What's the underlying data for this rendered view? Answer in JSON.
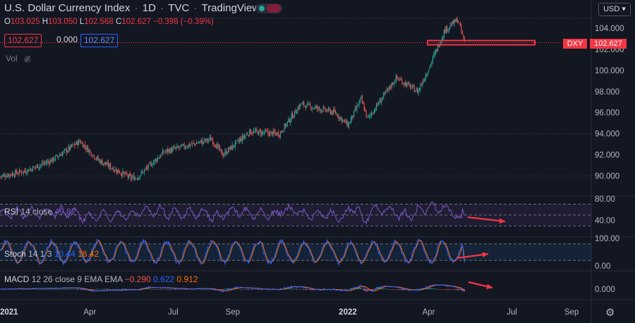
{
  "header": {
    "title": "U.S. Dollar Currency Index",
    "interval": "1D",
    "source": "TVC",
    "platform": "TradingView"
  },
  "ohlc": {
    "o_label": "O",
    "o": "103.025",
    "h_label": "H",
    "h": "103.050",
    "l_label": "L",
    "l": "102.568",
    "c_label": "C",
    "c": "102.627",
    "change": "−0.398 (−0.39%)"
  },
  "price_boxes": {
    "sell": "102.627",
    "spread": "0.000",
    "buy": "102.627"
  },
  "volume_label": "Vol",
  "currency": "USD",
  "colors": {
    "up": "#26a69a",
    "down": "#ef5350",
    "accent_red": "#f23645",
    "buy_blue": "#2962ff",
    "rsi": "#7e57c2",
    "k_line": "#2962ff",
    "d_line": "#ff6d00"
  },
  "chart_data": [
    {
      "type": "candlestick",
      "symbol": "DXY",
      "last_price": "102.627",
      "y_ticks": [
        "104.000",
        "102.000",
        "100.000",
        "98.000",
        "96.000",
        "94.000",
        "92.000",
        "90.000"
      ],
      "ylim": [
        88.5,
        105.2
      ],
      "x_ticks": [
        "2021",
        "Apr",
        "Jul",
        "Sep",
        "2022",
        "Apr",
        "Jul",
        "Sep"
      ],
      "approx_close_path": [
        {
          "x": "2021-01-01",
          "y": 89.9
        },
        {
          "x": "2021-02-01",
          "y": 90.5
        },
        {
          "x": "2021-03-01",
          "y": 91.5
        },
        {
          "x": "2021-03-31",
          "y": 93.3
        },
        {
          "x": "2021-04-20",
          "y": 91.5
        },
        {
          "x": "2021-05-25",
          "y": 89.8
        },
        {
          "x": "2021-06-01",
          "y": 89.9
        },
        {
          "x": "2021-06-30",
          "y": 92.3
        },
        {
          "x": "2021-08-20",
          "y": 93.5
        },
        {
          "x": "2021-09-01",
          "y": 92.0
        },
        {
          "x": "2021-09-30",
          "y": 94.2
        },
        {
          "x": "2021-11-01",
          "y": 94.0
        },
        {
          "x": "2021-11-24",
          "y": 96.8
        },
        {
          "x": "2021-12-31",
          "y": 96.0
        },
        {
          "x": "2022-01-14",
          "y": 94.8
        },
        {
          "x": "2022-01-28",
          "y": 97.3
        },
        {
          "x": "2022-02-04",
          "y": 95.4
        },
        {
          "x": "2022-03-07",
          "y": 99.3
        },
        {
          "x": "2022-03-30",
          "y": 98.0
        },
        {
          "x": "2022-04-12",
          "y": 100.4
        },
        {
          "x": "2022-04-28",
          "y": 103.8
        },
        {
          "x": "2022-05-12",
          "y": 104.8
        },
        {
          "x": "2022-05-20",
          "y": 102.6
        }
      ],
      "annotations": [
        "horizontal dotted line at last price",
        "red rectangle at ~102.627"
      ]
    },
    {
      "type": "line",
      "name": "RSI",
      "label": "RSI",
      "params": "14 close",
      "value": "49.82",
      "y_ticks": [
        "80.00",
        "40.00"
      ],
      "band": [
        30,
        70
      ]
    },
    {
      "type": "line",
      "name": "Stoch",
      "label": "Stoch",
      "params": "14 1 3",
      "k": "10.44",
      "d": "18.42",
      "y_ticks": [
        "100.00",
        "0.00"
      ],
      "band": [
        20,
        80
      ]
    },
    {
      "type": "line",
      "name": "MACD",
      "label": "MACD",
      "params": "12 26 close 9 EMA EMA",
      "hist": "−0.290",
      "macd": "0.622",
      "signal": "0.912",
      "y_ticks": [
        "0.000"
      ]
    }
  ]
}
